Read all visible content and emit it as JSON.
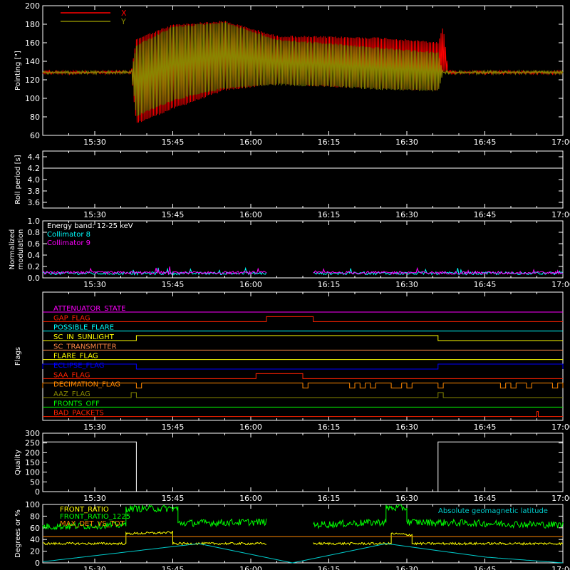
{
  "chart_data": [
    {
      "type": "line",
      "ylabel": "Pointing [\"]",
      "ylim": [
        60,
        200
      ],
      "yticks": [
        60,
        80,
        100,
        120,
        140,
        160,
        180,
        200
      ],
      "x_range": [
        "15:20",
        "17:00"
      ],
      "xticks": [
        "15:30",
        "15:45",
        "16:00",
        "16:15",
        "16:30",
        "16:45",
        "17:00"
      ],
      "legend": "top-left",
      "series": [
        {
          "name": "X",
          "color": "#ff0000",
          "envelope": [
            {
              "t": "15:20",
              "lo": 128,
              "hi": 128
            },
            {
              "t": "15:37",
              "lo": 128,
              "hi": 128
            },
            {
              "t": "15:38",
              "lo": 72,
              "hi": 165
            },
            {
              "t": "15:45",
              "lo": 88,
              "hi": 180
            },
            {
              "t": "15:55",
              "lo": 108,
              "hi": 184
            },
            {
              "t": "16:05",
              "lo": 115,
              "hi": 168
            },
            {
              "t": "16:15",
              "lo": 112,
              "hi": 167
            },
            {
              "t": "16:25",
              "lo": 110,
              "hi": 166
            },
            {
              "t": "16:36",
              "lo": 108,
              "hi": 161
            },
            {
              "t": "16:37",
              "lo": 128,
              "hi": 178
            },
            {
              "t": "16:38",
              "lo": 128,
              "hi": 128
            },
            {
              "t": "17:00",
              "lo": 128,
              "hi": 128
            }
          ]
        },
        {
          "name": "Y",
          "color": "#888800",
          "envelope": [
            {
              "t": "15:20",
              "lo": 128,
              "hi": 128
            },
            {
              "t": "15:37",
              "lo": 128,
              "hi": 128
            },
            {
              "t": "15:38",
              "lo": 80,
              "hi": 158
            },
            {
              "t": "15:45",
              "lo": 97,
              "hi": 178
            },
            {
              "t": "15:55",
              "lo": 110,
              "hi": 183
            },
            {
              "t": "16:05",
              "lo": 114,
              "hi": 164
            },
            {
              "t": "16:15",
              "lo": 112,
              "hi": 160
            },
            {
              "t": "16:25",
              "lo": 109,
              "hi": 155
            },
            {
              "t": "16:36",
              "lo": 107,
              "hi": 150
            },
            {
              "t": "16:37",
              "lo": 128,
              "hi": 128
            },
            {
              "t": "17:00",
              "lo": 128,
              "hi": 128
            }
          ]
        }
      ]
    },
    {
      "type": "line",
      "ylabel": "Roll period [s]",
      "ylim": [
        3.5,
        4.5
      ],
      "yticks": [
        3.6,
        3.8,
        4.0,
        4.2,
        4.4
      ],
      "x_range": [
        "15:20",
        "17:00"
      ],
      "xticks": [
        "15:30",
        "15:45",
        "16:00",
        "16:15",
        "16:30",
        "16:45",
        "17:00"
      ],
      "series": [
        {
          "color": "#ffffff",
          "x": [
            "15:20",
            "17:00"
          ],
          "y": [
            4.2,
            4.2
          ]
        }
      ]
    },
    {
      "type": "line",
      "ylabel": "Normalized modulation",
      "ylim": [
        0,
        1
      ],
      "yticks": [
        0.0,
        0.2,
        0.4,
        0.6,
        0.8,
        1.0
      ],
      "x_range": [
        "15:20",
        "17:00"
      ],
      "xticks": [
        "15:30",
        "15:45",
        "16:00",
        "16:15",
        "16:30",
        "16:45",
        "17:00"
      ],
      "annotation": "Energy band: 12-25 keV",
      "series": [
        {
          "name": "Collimator 8",
          "color": "#00ffff",
          "segments": [
            [
              "15:20",
              "16:03"
            ],
            [
              "16:12",
              "17:00"
            ]
          ],
          "level": 0.08
        },
        {
          "name": "Collimator 9",
          "color": "#ff00ff",
          "segments": [
            [
              "15:20",
              "16:03"
            ],
            [
              "16:12",
              "17:00"
            ]
          ],
          "level": 0.09
        }
      ]
    },
    {
      "type": "line",
      "ylabel": "Flags",
      "x_range": [
        "15:20",
        "17:00"
      ],
      "xticks": [
        "15:30",
        "15:45",
        "16:00",
        "16:15",
        "16:30",
        "16:45",
        "17:00"
      ],
      "flags": [
        {
          "name": "ATTENUATOR_STATE",
          "color": "#ff00ff",
          "on": []
        },
        {
          "name": "GAP_FLAG",
          "color": "#ff2200",
          "on": [
            [
              "16:03",
              "16:12"
            ]
          ]
        },
        {
          "name": "POSSIBLE_FLARE",
          "color": "#00ffff",
          "on": []
        },
        {
          "name": "SC_IN_SUNLIGHT",
          "color": "#ffff00",
          "on": [
            [
              "15:38",
              "16:36"
            ]
          ]
        },
        {
          "name": "SC_TRANSMITTER",
          "color": "#ff8844",
          "on": []
        },
        {
          "name": "FLARE_FLAG",
          "color": "#ffff00",
          "on": []
        },
        {
          "name": "ECLIPSE_FLAG",
          "color": "#0000ff",
          "on": [
            [
              "15:20",
              "15:38"
            ],
            [
              "16:36",
              "17:00"
            ]
          ]
        },
        {
          "name": "SAA_FLAG",
          "color": "#ff2200",
          "on": [
            [
              "16:01",
              "16:10"
            ]
          ]
        },
        {
          "name": "DECIMATION_FLAG",
          "color": "#ff8800",
          "on": [
            [
              "15:20",
              "15:38"
            ],
            [
              "15:39",
              "16:10"
            ],
            [
              "16:11",
              "16:19"
            ],
            [
              "16:20",
              "16:21"
            ],
            [
              "16:22",
              "16:23"
            ],
            [
              "16:24",
              "16:27"
            ],
            [
              "16:29",
              "16:30"
            ],
            [
              "16:31",
              "16:36"
            ],
            [
              "16:37",
              "16:48"
            ],
            [
              "16:49",
              "16:50"
            ],
            [
              "16:51",
              "16:53"
            ],
            [
              "16:54",
              "16:58"
            ],
            [
              "16:59",
              "17:00"
            ]
          ]
        },
        {
          "name": "AAZ_FLAG",
          "color": "#888800",
          "on": [
            [
              "15:37",
              "15:38"
            ],
            [
              "16:36",
              "16:37"
            ]
          ]
        },
        {
          "name": "FRONTS_OFF",
          "color": "#00ff00",
          "on": []
        },
        {
          "name": "BAD_PACKETS",
          "color": "#ff2200",
          "on": [
            [
              "16:55",
              "16:55"
            ]
          ]
        }
      ]
    },
    {
      "type": "line",
      "ylabel": "Quality",
      "ylim": [
        0,
        300
      ],
      "yticks": [
        0,
        50,
        100,
        150,
        200,
        250,
        300
      ],
      "x_range": [
        "15:20",
        "17:00"
      ],
      "xticks": [
        "15:30",
        "15:45",
        "16:00",
        "16:15",
        "16:30",
        "16:45",
        "17:00"
      ],
      "series": [
        {
          "color": "#ffffff",
          "x": [
            "15:20",
            "15:38",
            "15:38",
            "16:36",
            "16:36",
            "16:36",
            "17:00"
          ],
          "y": [
            255,
            255,
            0,
            0,
            0,
            255,
            255
          ]
        }
      ]
    },
    {
      "type": "line",
      "ylabel": "Degrees or %",
      "ylim": [
        0,
        100
      ],
      "yticks": [
        0,
        20,
        40,
        60,
        80,
        100
      ],
      "x_range": [
        "15:20",
        "17:00"
      ],
      "xticks": [
        "15:30",
        "15:45",
        "16:00",
        "16:15",
        "16:30",
        "16:45",
        "17:00"
      ],
      "annotation": "Absolute geomagnetic latitude",
      "series": [
        {
          "name": "FRONT_RATIO",
          "color": "#ffff00",
          "x": [
            "15:20",
            "15:36",
            "15:36",
            "15:45",
            "15:45",
            "16:03",
            "16:03",
            "16:12",
            "16:12",
            "16:27",
            "16:27",
            "16:31",
            "16:31",
            "17:00"
          ],
          "y": [
            33,
            33,
            50,
            52,
            33,
            33,
            null,
            null,
            33,
            33,
            50,
            48,
            33,
            33
          ]
        },
        {
          "name": "FRONT_RATIO_1225",
          "color": "#00ff00",
          "x": [
            "15:20",
            "15:36",
            "15:36",
            "15:46",
            "15:46",
            "16:03",
            "16:03",
            "16:12",
            "16:12",
            "16:26",
            "16:26",
            "16:30",
            "16:30",
            "17:00"
          ],
          "y": [
            62,
            65,
            93,
            93,
            68,
            70,
            null,
            null,
            65,
            70,
            94,
            94,
            70,
            65
          ]
        },
        {
          "name": "MAX_DET_VS_TOT",
          "color": "#ff8800",
          "x": [
            "15:20",
            "17:00"
          ],
          "y": [
            45,
            45
          ]
        },
        {
          "name": "Absolute geomagnetic latitude",
          "color": "#00cccc",
          "x": [
            "15:20",
            "15:50",
            "16:08",
            "16:26",
            "16:45",
            "17:00"
          ],
          "y": [
            2,
            33,
            0,
            33,
            10,
            0
          ]
        }
      ]
    }
  ]
}
